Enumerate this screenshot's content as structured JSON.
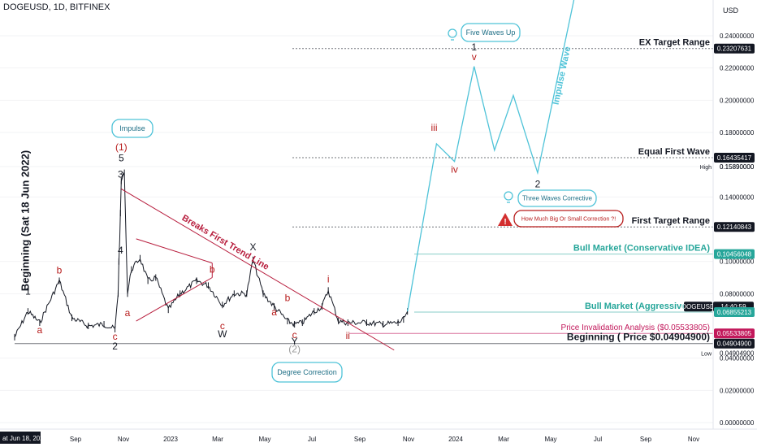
{
  "symbol": "DOGEUSD, 1D, BITFINEX",
  "currency": "USD",
  "side_label": "Beginning (Sat 18 Jun 2022)",
  "time_axis": {
    "first_date_label": "at Jun 18, 2022",
    "ticks": [
      "Sep",
      "Nov",
      "2023",
      "Mar",
      "May",
      "Jul",
      "Sep",
      "Nov",
      "2024",
      "Mar",
      "May",
      "Jul",
      "Sep",
      "Nov"
    ]
  },
  "price_badges": [
    {
      "key": "ex",
      "label": "0.23207631",
      "bg": "#131722",
      "fg": "#ffffff"
    },
    {
      "key": "equal",
      "label": "0.16435417",
      "bg": "#131722",
      "fg": "#ffffff"
    },
    {
      "key": "first",
      "label": "0.12140843",
      "bg": "#131722",
      "fg": "#ffffff"
    },
    {
      "key": "cons",
      "label": "0.10456048",
      "bg": "#26a69a",
      "fg": "#ffffff"
    },
    {
      "key": "symbol",
      "label": "DOGEUSD",
      "bg": "#131722",
      "fg": "#ffffff"
    },
    {
      "key": "time",
      "label": "14:40:59",
      "bg": "#131722",
      "fg": "#ffffff"
    },
    {
      "key": "aggr",
      "label": "0.06855213",
      "bg": "#26a69a",
      "fg": "#ffffff"
    },
    {
      "key": "inval",
      "label": "0.05533805",
      "bg": "#c2185b",
      "fg": "#ffffff"
    },
    {
      "key": "begin",
      "label": "0.04904900",
      "bg": "#131722",
      "fg": "#ffffff"
    }
  ],
  "high_low": {
    "high_label": "High",
    "high_value": "0.15890000",
    "low_label": "Low",
    "low_value": "0.04904900"
  },
  "level_labels": {
    "ex": "EX Target Range",
    "equal": "Equal First Wave",
    "first": "First Target Range",
    "cons": "Bull Market (Conservative IDEA)",
    "aggr": "Bull Market (Aggressive Idea)",
    "inval": "Price Invalidation Analysis ($0.05533805)",
    "begin": "Beginning ( Price $0.04904900)"
  },
  "callouts": {
    "impulse": "Impulse",
    "five_waves": "Five Waves Up",
    "three_waves": "Three Waves Corrective",
    "correction_q": "How Much Big Or Small Correction ?!",
    "degree": "Degree Correction"
  },
  "line_labels": {
    "trend": "Breaks First Trend Line",
    "impulse_wave": "Impulse Wave"
  },
  "wave_labels": [
    "1",
    "a",
    "b",
    "c",
    "2",
    "(1)",
    "5",
    "3",
    "4",
    "a",
    "b",
    "X",
    "c",
    "W",
    "a",
    "b",
    "c",
    "Y",
    "(2)",
    "i",
    "ii",
    "iii",
    "iv",
    "v",
    "1",
    "2"
  ],
  "colors": {
    "candle": "#131722",
    "trend": "#b71c3c",
    "projection": "#4fc3d8",
    "accent": "#26a69a",
    "wave_red": "#b71c1c",
    "background": "#ffffff"
  },
  "chart_data": {
    "type": "line",
    "title": "DOGEUSD, 1D, BITFINEX",
    "y_scale": "linear",
    "y_axis_ticks": [
      "0.24000000",
      "0.22000000",
      "0.20000000",
      "0.18000000",
      "0.15890000",
      "0.14000000",
      "0.10000000",
      "0.08000000",
      "0.04000000",
      "0.02000000",
      "0.00000000"
    ],
    "x_axis_ticks": [
      "Sep",
      "Nov",
      "2023",
      "Mar",
      "May",
      "Jul",
      "Sep",
      "Nov",
      "2024",
      "Mar",
      "May",
      "Jul",
      "Sep",
      "Nov"
    ],
    "series": [
      {
        "name": "DOGEUSD",
        "x": [
          "2022-06-18",
          "2022-07-05",
          "2022-07-20",
          "2022-08-14",
          "2022-08-30",
          "2022-09-20",
          "2022-10-10",
          "2022-10-24",
          "2022-10-28",
          "2022-10-29",
          "2022-10-31",
          "2022-11-01",
          "2022-11-05",
          "2022-11-09",
          "2022-11-14",
          "2022-11-25",
          "2022-12-05",
          "2022-12-15",
          "2022-12-31",
          "2023-01-15",
          "2023-02-05",
          "2023-02-20",
          "2023-03-10",
          "2023-03-25",
          "2023-04-10",
          "2023-04-18",
          "2023-05-01",
          "2023-05-15",
          "2023-06-01",
          "2023-06-10",
          "2023-06-20",
          "2023-07-05",
          "2023-07-15",
          "2023-07-23",
          "2023-08-05",
          "2023-08-17",
          "2023-09-10",
          "2023-10-01",
          "2023-10-20",
          "2023-10-27",
          "2023-11-01"
        ],
        "y": [
          0.053,
          0.069,
          0.062,
          0.088,
          0.065,
          0.06,
          0.061,
          0.058,
          0.08,
          0.1,
          0.13,
          0.15,
          0.155,
          0.08,
          0.095,
          0.102,
          0.088,
          0.09,
          0.07,
          0.08,
          0.088,
          0.085,
          0.073,
          0.08,
          0.08,
          0.101,
          0.08,
          0.072,
          0.063,
          0.061,
          0.062,
          0.069,
          0.072,
          0.082,
          0.063,
          0.062,
          0.062,
          0.061,
          0.062,
          0.064,
          0.069
        ]
      },
      {
        "name": "Projection",
        "x": [
          "2023-11-01",
          "2023-12-08",
          "2023-12-31",
          "2024-01-25",
          "2024-02-20",
          "2024-03-15",
          "2024-04-15",
          "2024-06-01"
        ],
        "y": [
          0.069,
          0.173,
          0.162,
          0.221,
          0.169,
          0.203,
          0.155,
          0.264
        ]
      }
    ],
    "levels": [
      {
        "label": "EX Target Range",
        "value": 0.23207631
      },
      {
        "label": "Equal First Wave",
        "value": 0.16435417
      },
      {
        "label": "First Target Range",
        "value": 0.12140843
      },
      {
        "label": "Bull Market (Conservative IDEA)",
        "value": 0.10456048
      },
      {
        "label": "Bull Market (Aggressive Idea)",
        "value": 0.06855213
      },
      {
        "label": "Price Invalidation Analysis ($0.05533805)",
        "value": 0.05533805
      },
      {
        "label": "Beginning ( Price $0.04904900)",
        "value": 0.049049
      }
    ],
    "high": 0.1589,
    "low": 0.049049,
    "trend_lines": [
      {
        "name": "Breaks First Trend Line",
        "from": [
          "2022-11-01",
          0.145
        ],
        "to": [
          "2023-10-15",
          0.045
        ]
      },
      {
        "name": "triangle-upper",
        "from": [
          "2022-11-20",
          0.114
        ],
        "to": [
          "2023-02-25",
          0.099
        ]
      },
      {
        "name": "triangle-lower",
        "from": [
          "2022-11-20",
          0.063
        ],
        "to": [
          "2023-02-25",
          0.09
        ]
      },
      {
        "name": "triangle-tip",
        "from": [
          "2023-02-25",
          0.099
        ],
        "to": [
          "2023-02-25",
          0.09
        ]
      }
    ],
    "wave_marks": [
      {
        "label": "1",
        "x": "2022-07-05",
        "y": 0.0795,
        "color": "#131722"
      },
      {
        "label": "a",
        "x": "2022-07-20",
        "y": 0.0555,
        "color": "#b71c1c"
      },
      {
        "label": "b",
        "x": "2022-08-14",
        "y": 0.0925,
        "color": "#b71c1c"
      },
      {
        "label": "c",
        "x": "2022-10-24",
        "y": 0.0515,
        "color": "#b71c1c"
      },
      {
        "label": "2",
        "x": "2022-10-24",
        "y": 0.0455,
        "color": "#131722"
      },
      {
        "label": "(1)",
        "x": "2022-11-01",
        "y": 0.169,
        "color": "#b71c1c"
      },
      {
        "label": "5",
        "x": "2022-11-01",
        "y": 0.162,
        "color": "#131722"
      },
      {
        "label": "3",
        "x": "2022-10-31",
        "y": 0.152,
        "color": "#131722"
      },
      {
        "label": "4",
        "x": "2022-10-31",
        "y": 0.105,
        "color": "#131722"
      },
      {
        "label": "a",
        "x": "2022-11-09",
        "y": 0.066,
        "color": "#b71c1c"
      },
      {
        "label": "b",
        "x": "2023-02-25",
        "y": 0.093,
        "color": "#b71c1c"
      },
      {
        "label": "X",
        "x": "2023-04-18",
        "y": 0.107,
        "color": "#131722"
      },
      {
        "label": "c",
        "x": "2023-03-10",
        "y": 0.058,
        "color": "#b71c1c"
      },
      {
        "label": "W",
        "x": "2023-03-10",
        "y": 0.053,
        "color": "#131722"
      },
      {
        "label": "a",
        "x": "2023-05-15",
        "y": 0.0665,
        "color": "#b71c1c"
      },
      {
        "label": "b",
        "x": "2023-06-01",
        "y": 0.0755,
        "color": "#b71c1c"
      },
      {
        "label": "c",
        "x": "2023-06-10",
        "y": 0.0525,
        "color": "#b71c1c"
      },
      {
        "label": "Y",
        "x": "2023-06-10",
        "y": 0.0485,
        "color": "#131722"
      },
      {
        "label": "(2)",
        "x": "2023-06-10",
        "y": 0.0435,
        "color": "#999999"
      },
      {
        "label": "i",
        "x": "2023-07-23",
        "y": 0.087,
        "color": "#b71c1c"
      },
      {
        "label": "ii",
        "x": "2023-08-17",
        "y": 0.052,
        "color": "#b71c1c"
      },
      {
        "label": "iii",
        "x": "2023-12-05",
        "y": 0.181,
        "color": "#b71c1c"
      },
      {
        "label": "iv",
        "x": "2023-12-31",
        "y": 0.155,
        "color": "#b71c1c"
      },
      {
        "label": "v",
        "x": "2024-01-25",
        "y": 0.225,
        "color": "#b71c1c"
      },
      {
        "label": "1",
        "x": "2024-01-25",
        "y": 0.231,
        "color": "#131722"
      },
      {
        "label": "2",
        "x": "2024-04-15",
        "y": 0.146,
        "color": "#131722"
      }
    ]
  }
}
